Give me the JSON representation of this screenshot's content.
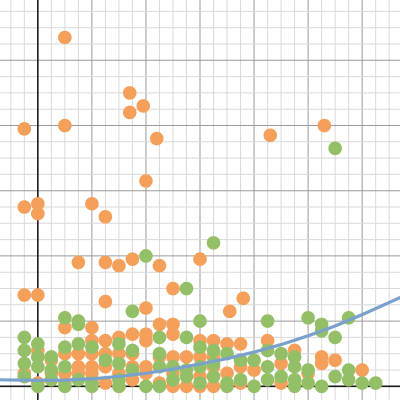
{
  "chart_data": {
    "type": "scatter",
    "title": "",
    "xlabel": "",
    "ylabel": "",
    "xlim": [
      -1.4,
      13.4
    ],
    "ylim": [
      -0.42,
      11.85
    ],
    "grid": true,
    "legend": "none",
    "colors": {
      "orange": "#f4a05a",
      "green": "#93bf66",
      "curve": "#7aa0cc",
      "grid_minor": "#d9d9d9",
      "grid_major": "#9a9a9a",
      "axis": "#1a1a1a"
    },
    "series": [
      {
        "color": "#f4a05a",
        "points": [
          [
            1.0,
            10.7
          ],
          [
            3.4,
            9.0
          ],
          [
            3.9,
            8.6
          ],
          [
            3.4,
            8.4
          ],
          [
            -0.5,
            7.9
          ],
          [
            1.0,
            8.0
          ],
          [
            4.4,
            7.6
          ],
          [
            8.6,
            7.7
          ],
          [
            10.6,
            8.0
          ],
          [
            4.0,
            6.3
          ],
          [
            -0.5,
            5.5
          ],
          [
            0.0,
            5.6
          ],
          [
            0.0,
            5.3
          ],
          [
            2.0,
            5.6
          ],
          [
            2.5,
            5.2
          ],
          [
            1.5,
            3.8
          ],
          [
            2.5,
            3.8
          ],
          [
            3.0,
            3.7
          ],
          [
            3.5,
            3.9
          ],
          [
            4.5,
            3.7
          ],
          [
            5.0,
            3.0
          ],
          [
            6.0,
            3.9
          ],
          [
            -0.5,
            2.8
          ],
          [
            0.0,
            2.8
          ],
          [
            2.5,
            2.6
          ],
          [
            7.6,
            2.7
          ],
          [
            7.1,
            2.3
          ],
          [
            4.0,
            2.4
          ],
          [
            5.0,
            1.9
          ],
          [
            4.5,
            1.9
          ],
          [
            2.0,
            1.8
          ],
          [
            1.0,
            1.8
          ],
          [
            3.0,
            1.5
          ],
          [
            3.5,
            1.6
          ],
          [
            4.0,
            1.6
          ],
          [
            5.0,
            1.6
          ],
          [
            2.5,
            1.4
          ],
          [
            2.0,
            1.4
          ],
          [
            6.0,
            1.4
          ],
          [
            6.5,
            1.4
          ],
          [
            7.0,
            1.3
          ],
          [
            7.5,
            1.3
          ],
          [
            8.5,
            1.4
          ],
          [
            9.5,
            1.1
          ],
          [
            4.0,
            1.4
          ],
          [
            0.0,
            1.1
          ],
          [
            1.0,
            1.0
          ],
          [
            1.5,
            1.0
          ],
          [
            2.0,
            1.0
          ],
          [
            2.5,
            1.0
          ],
          [
            3.0,
            1.0
          ],
          [
            3.5,
            1.0
          ],
          [
            4.5,
            0.9
          ],
          [
            5.0,
            0.9
          ],
          [
            5.5,
            0.9
          ],
          [
            6.0,
            0.9
          ],
          [
            6.5,
            0.9
          ],
          [
            0.5,
            0.8
          ],
          [
            1.5,
            0.6
          ],
          [
            2.0,
            0.6
          ],
          [
            2.5,
            0.6
          ],
          [
            3.5,
            0.6
          ],
          [
            4.0,
            0.6
          ],
          [
            6.5,
            0.6
          ],
          [
            7.5,
            0.6
          ],
          [
            9.0,
            0.7
          ],
          [
            10.5,
            0.7
          ],
          [
            11.0,
            0.8
          ],
          [
            -0.5,
            0.4
          ],
          [
            0.5,
            0.4
          ],
          [
            1.0,
            0.4
          ],
          [
            1.5,
            0.4
          ],
          [
            2.0,
            0.4
          ],
          [
            3.0,
            0.4
          ],
          [
            4.0,
            0.4
          ],
          [
            5.0,
            0.4
          ],
          [
            6.0,
            0.3
          ],
          [
            7.0,
            0.4
          ],
          [
            8.0,
            0.5
          ],
          [
            10.0,
            0.4
          ],
          [
            0.0,
            0.1
          ],
          [
            1.0,
            0.1
          ],
          [
            2.5,
            0.1
          ],
          [
            3.5,
            0.2
          ],
          [
            4.5,
            0.1
          ],
          [
            5.5,
            0.0
          ],
          [
            6.0,
            0.0
          ],
          [
            6.5,
            0.0
          ],
          [
            7.5,
            0.1
          ],
          [
            9.0,
            0.1
          ],
          [
            10.5,
            0.9
          ],
          [
            12.0,
            0.5
          ],
          [
            2.0,
            0.2
          ],
          [
            3.0,
            0.0
          ],
          [
            5.0,
            0.0
          ]
        ]
      },
      {
        "color": "#93bf66",
        "points": [
          [
            11.0,
            7.3
          ],
          [
            6.5,
            4.4
          ],
          [
            4.0,
            4.0
          ],
          [
            5.5,
            3.0
          ],
          [
            1.0,
            2.1
          ],
          [
            1.5,
            2.0
          ],
          [
            3.5,
            2.3
          ],
          [
            6.0,
            2.0
          ],
          [
            8.5,
            2.0
          ],
          [
            10.0,
            2.1
          ],
          [
            10.5,
            1.9
          ],
          [
            11.5,
            2.1
          ],
          [
            1.5,
            1.9
          ],
          [
            10.5,
            1.7
          ],
          [
            11.0,
            1.5
          ],
          [
            4.5,
            1.5
          ],
          [
            5.5,
            1.5
          ],
          [
            -0.5,
            1.5
          ],
          [
            0.0,
            1.3
          ],
          [
            1.5,
            1.3
          ],
          [
            2.0,
            1.2
          ],
          [
            3.0,
            1.3
          ],
          [
            3.5,
            1.1
          ],
          [
            4.5,
            1.0
          ],
          [
            -0.5,
            1.1
          ],
          [
            0.0,
            0.9
          ],
          [
            0.5,
            0.9
          ],
          [
            1.0,
            1.2
          ],
          [
            6.0,
            1.2
          ],
          [
            6.5,
            1.1
          ],
          [
            7.0,
            1.0
          ],
          [
            8.5,
            1.1
          ],
          [
            9.0,
            1.0
          ],
          [
            9.5,
            0.9
          ],
          [
            -0.5,
            0.7
          ],
          [
            0.0,
            0.6
          ],
          [
            0.5,
            0.5
          ],
          [
            1.0,
            0.6
          ],
          [
            2.5,
            0.8
          ],
          [
            3.0,
            0.7
          ],
          [
            3.5,
            0.5
          ],
          [
            4.5,
            0.6
          ],
          [
            5.0,
            0.6
          ],
          [
            5.5,
            0.5
          ],
          [
            6.0,
            0.6
          ],
          [
            6.5,
            0.7
          ],
          [
            7.5,
            0.8
          ],
          [
            8.0,
            0.8
          ],
          [
            8.5,
            0.6
          ],
          [
            9.5,
            0.6
          ],
          [
            10.0,
            0.5
          ],
          [
            11.5,
            0.5
          ],
          [
            -0.5,
            0.3
          ],
          [
            0.5,
            0.2
          ],
          [
            1.5,
            0.2
          ],
          [
            2.0,
            0.1
          ],
          [
            3.0,
            0.2
          ],
          [
            4.0,
            0.0
          ],
          [
            5.0,
            0.2
          ],
          [
            5.5,
            0.3
          ],
          [
            6.5,
            0.3
          ],
          [
            7.0,
            0.1
          ],
          [
            7.5,
            0.2
          ],
          [
            8.5,
            0.2
          ],
          [
            9.0,
            0.3
          ],
          [
            9.5,
            0.2
          ],
          [
            10.0,
            0.1
          ],
          [
            10.5,
            0.0
          ],
          [
            11.0,
            0.3
          ],
          [
            12.0,
            0.1
          ],
          [
            12.5,
            0.1
          ],
          [
            0.0,
            0.0
          ],
          [
            1.0,
            0.0
          ],
          [
            2.0,
            0.0
          ],
          [
            3.0,
            0.0
          ],
          [
            4.5,
            0.0
          ],
          [
            6.0,
            0.1
          ],
          [
            7.0,
            0.0
          ],
          [
            8.0,
            0.0
          ],
          [
            9.5,
            0.0
          ],
          [
            11.5,
            0.2
          ]
        ]
      }
    ],
    "curve": {
      "color": "#7aa0cc",
      "points": [
        [
          -1.4,
          0.2
        ],
        [
          0,
          0.18
        ],
        [
          1,
          0.19
        ],
        [
          2,
          0.23
        ],
        [
          3,
          0.3
        ],
        [
          4,
          0.4
        ],
        [
          5,
          0.53
        ],
        [
          6,
          0.68
        ],
        [
          7,
          0.85
        ],
        [
          8,
          1.05
        ],
        [
          9,
          1.28
        ],
        [
          10,
          1.55
        ],
        [
          11,
          1.85
        ],
        [
          12,
          2.2
        ],
        [
          13.4,
          2.72
        ]
      ]
    }
  }
}
